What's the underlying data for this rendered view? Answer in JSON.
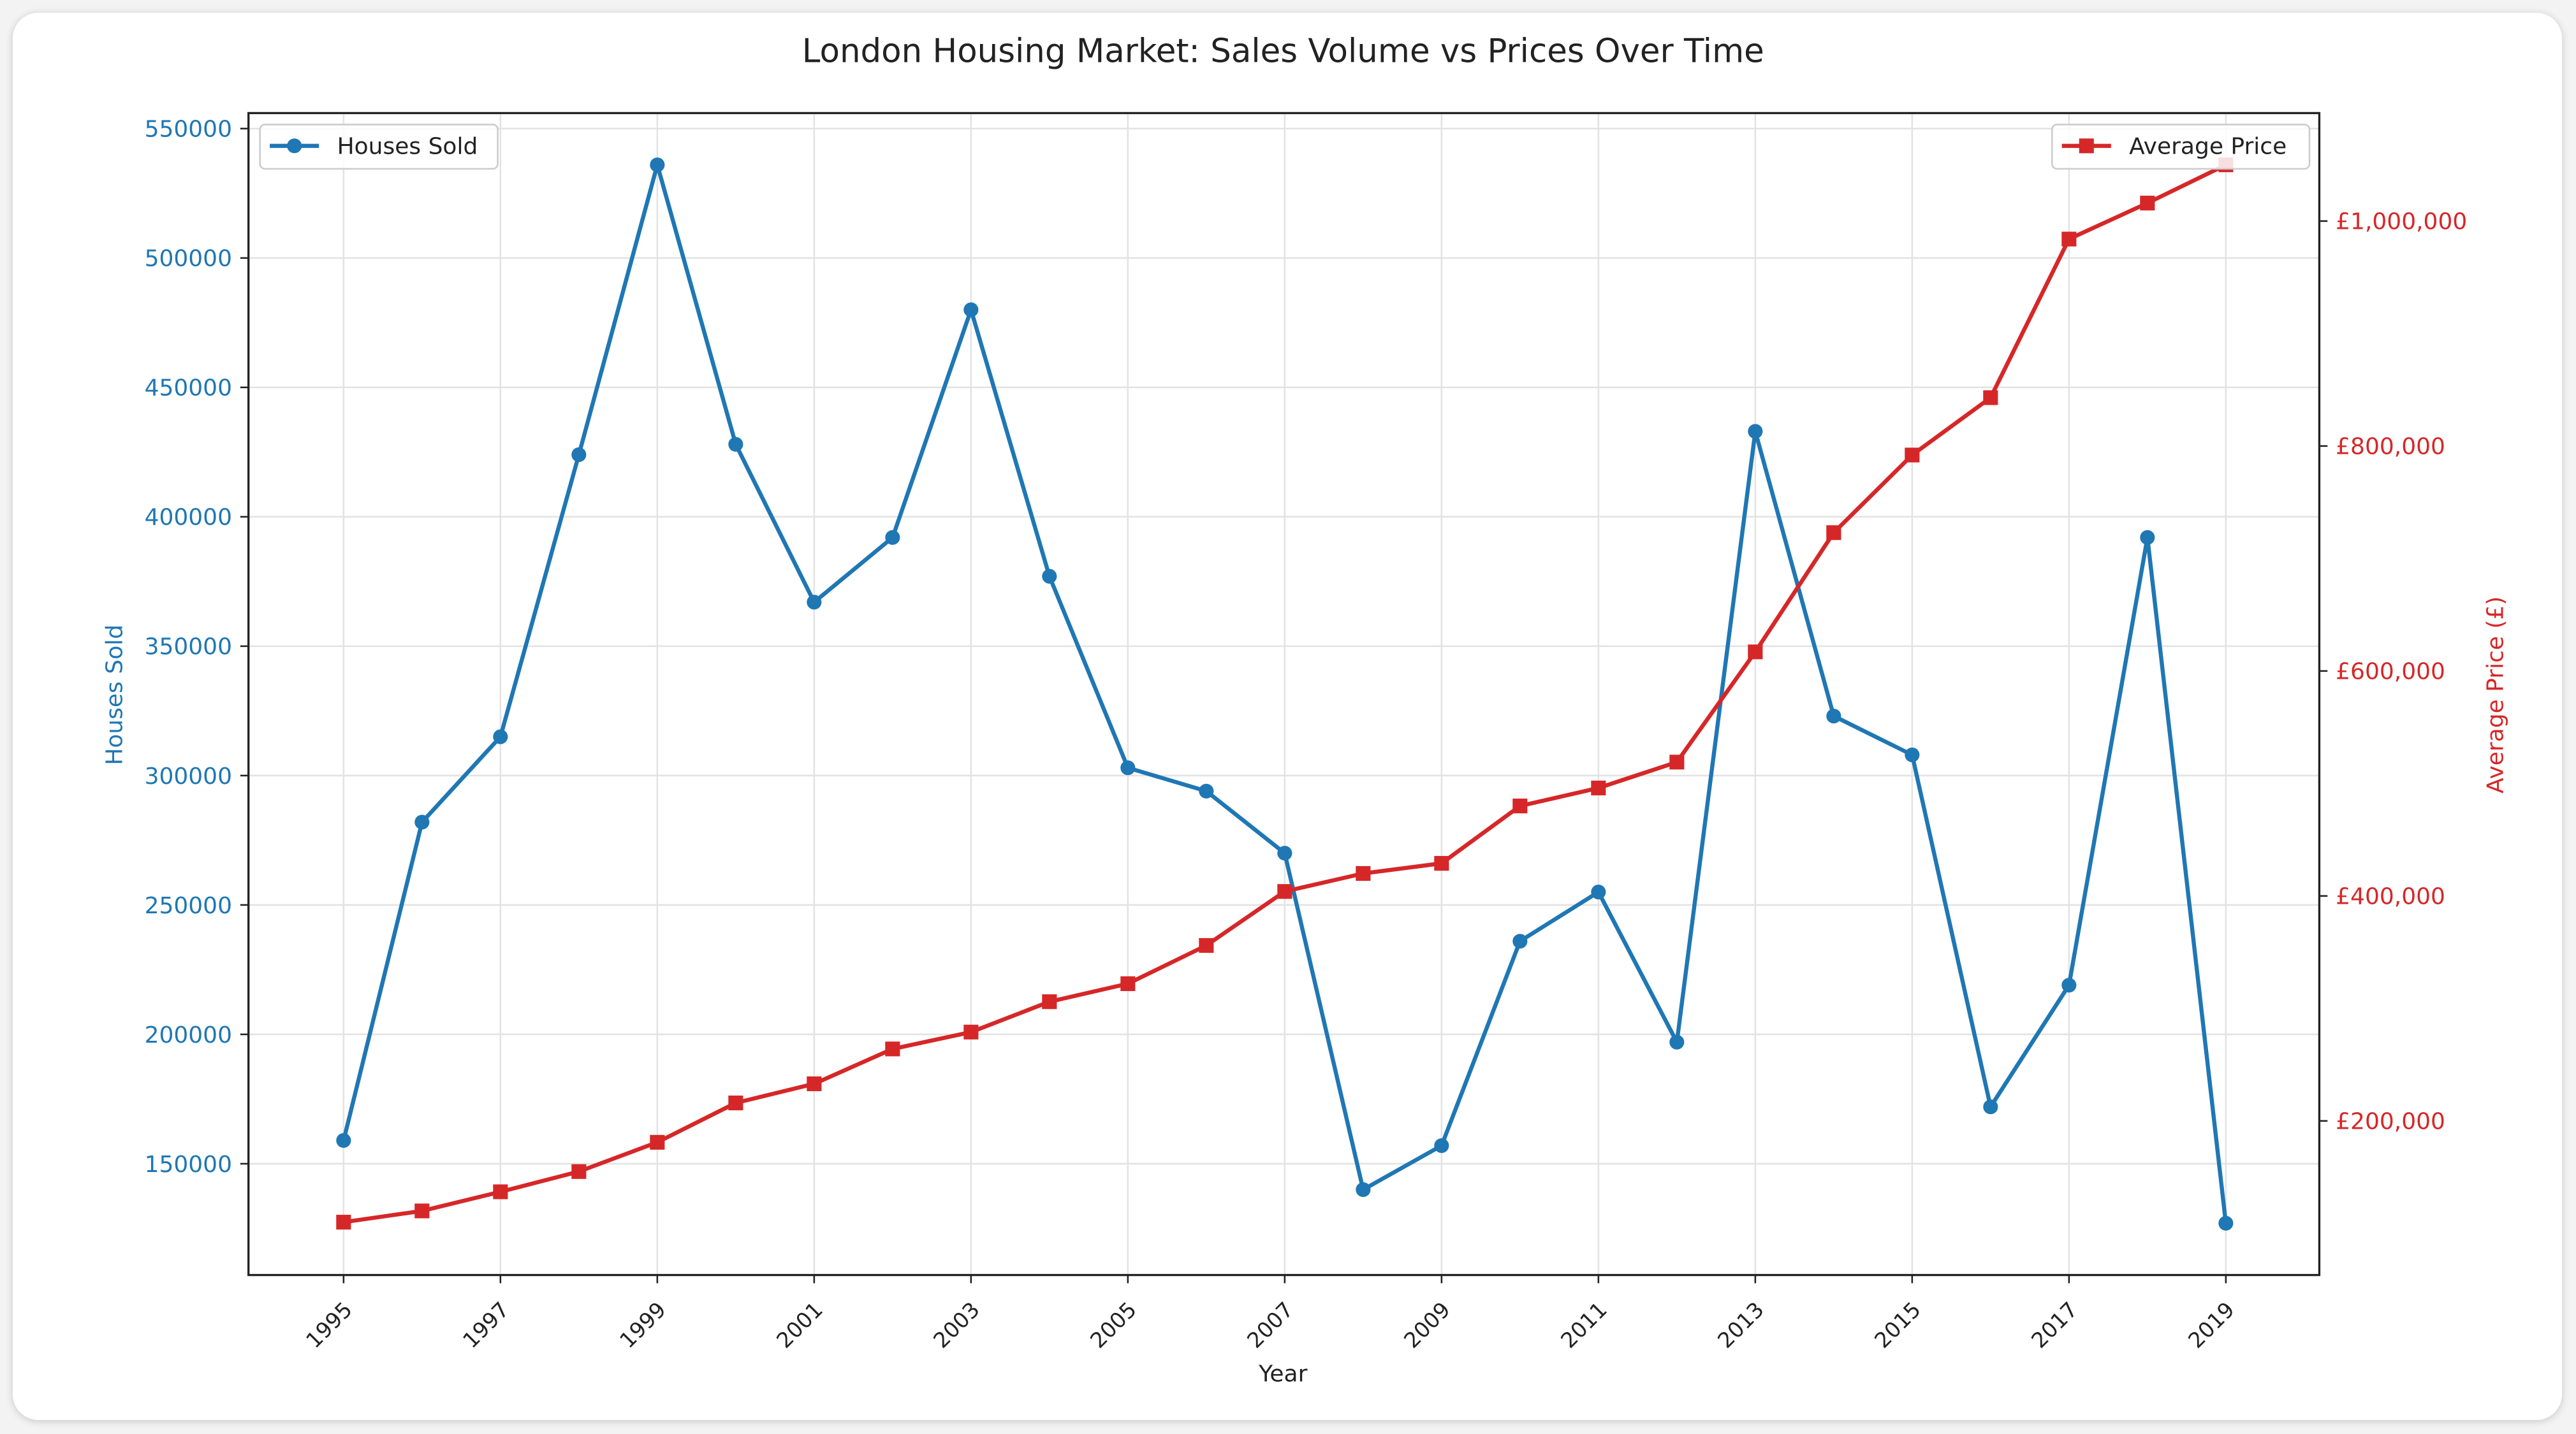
{
  "chart_data": {
    "type": "line",
    "title": "London Housing Market: Sales Volume vs Prices Over Time",
    "xlabel": "Year",
    "ylabel": "Houses Sold",
    "y2label": "Average Price (£)",
    "x": [
      1995,
      1996,
      1997,
      1998,
      1999,
      2000,
      2001,
      2002,
      2003,
      2004,
      2005,
      2006,
      2007,
      2008,
      2009,
      2010,
      2011,
      2012,
      2013,
      2014,
      2015,
      2016,
      2017,
      2018,
      2019
    ],
    "xticks": [
      "1995",
      "1997",
      "1999",
      "2001",
      "2003",
      "2005",
      "2007",
      "2009",
      "2011",
      "2013",
      "2015",
      "2017",
      "2019"
    ],
    "yticks": [
      "150000",
      "200000",
      "250000",
      "300000",
      "350000",
      "400000",
      "450000",
      "500000",
      "550000"
    ],
    "y2ticks": [
      "£200,000",
      "£400,000",
      "£600,000",
      "£800,000",
      "£1,000,000"
    ],
    "ylim": [
      107000,
      556000
    ],
    "y2lim": [
      63000,
      1096000
    ],
    "grid": true,
    "series": [
      {
        "name": "Houses Sold",
        "axis": "left",
        "color": "#1f77b4",
        "marker": "circle",
        "legend": "top-left",
        "values": [
          159000,
          282000,
          315000,
          424000,
          536000,
          428000,
          367000,
          392000,
          480000,
          377000,
          303000,
          294000,
          270000,
          140000,
          157000,
          236000,
          255000,
          197000,
          433000,
          323000,
          308000,
          172000,
          219000,
          392000,
          127000
        ]
      },
      {
        "name": "Average Price",
        "axis": "right",
        "color": "#d62728",
        "marker": "square",
        "legend": "top-right",
        "values": [
          110000,
          120000,
          137000,
          155000,
          181000,
          216000,
          233000,
          264000,
          279000,
          306000,
          322000,
          356000,
          404000,
          420000,
          429000,
          480000,
          496000,
          519000,
          617000,
          723000,
          792000,
          843000,
          984000,
          1016000,
          1050000
        ]
      }
    ]
  }
}
